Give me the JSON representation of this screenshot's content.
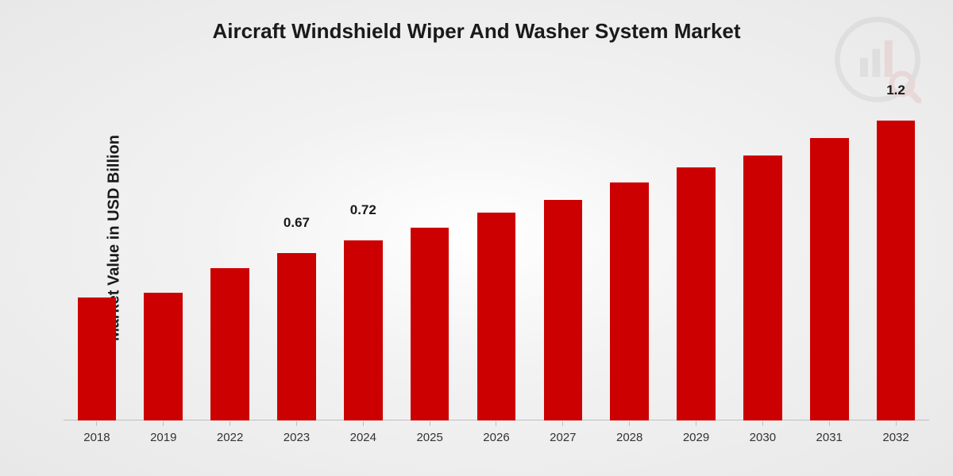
{
  "chart": {
    "type": "bar",
    "title": "Aircraft Windshield Wiper And Washer System Market",
    "title_fontsize": 26,
    "ylabel": "Market Value in USD Billion",
    "ylabel_fontsize": 20,
    "categories": [
      "2018",
      "2019",
      "2022",
      "2023",
      "2024",
      "2025",
      "2026",
      "2027",
      "2028",
      "2029",
      "2030",
      "2031",
      "2032"
    ],
    "values": [
      0.49,
      0.51,
      0.61,
      0.67,
      0.72,
      0.77,
      0.83,
      0.88,
      0.95,
      1.01,
      1.06,
      1.13,
      1.2
    ],
    "value_labels": [
      "",
      "",
      "",
      "0.67",
      "0.72",
      "",
      "",
      "",
      "",
      "",
      "",
      "",
      "1.2"
    ],
    "bar_color": "#cc0000",
    "bar_width_pct": 58,
    "ylim": [
      0,
      1.3
    ],
    "background": "radial-gradient(#ffffff,#e8e8e8)",
    "axis_line_color": "#bfbfbf",
    "text_color": "#1a1a1a",
    "tick_fontsize": 15,
    "value_label_fontsize": 17,
    "aspect": "1200x600"
  },
  "watermark": {
    "name": "logo-watermark",
    "opacity": 0.08,
    "primary_color": "#cc0000",
    "secondary_color": "#555555"
  }
}
